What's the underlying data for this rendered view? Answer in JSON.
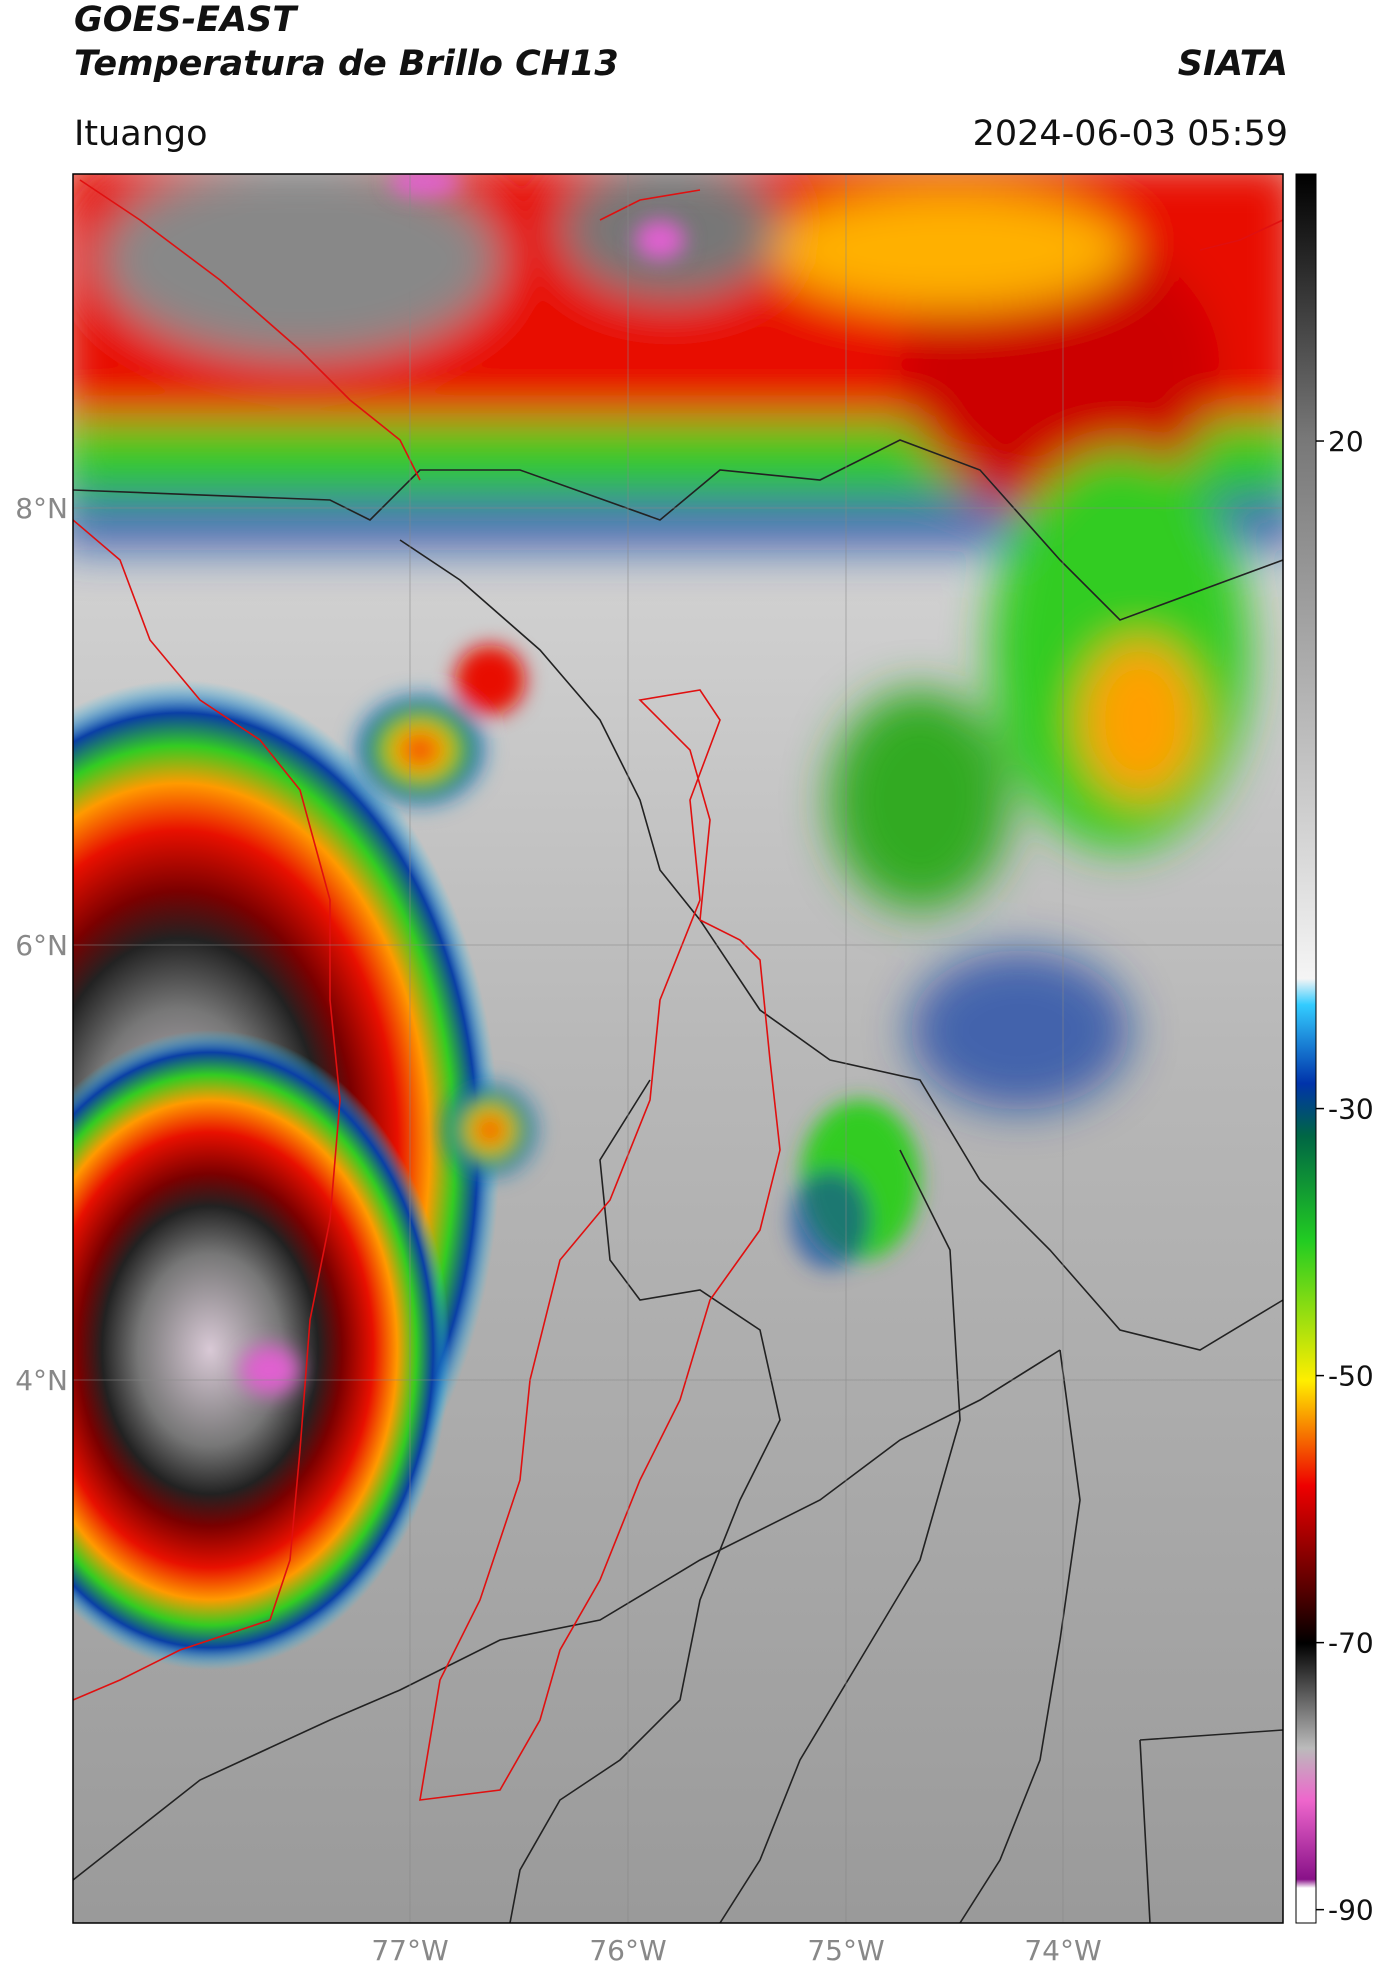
{
  "header": {
    "title": "GOES-EAST",
    "subtitle": "Temperatura de Brillo CH13",
    "source": "SIATA",
    "location": "Ituango",
    "datetime": "2024-06-03 05:59"
  },
  "map": {
    "lat_ticks": [
      "8°N",
      "6°N",
      "4°N"
    ],
    "lon_ticks": [
      "77°W",
      "76°W",
      "75°W",
      "74°W"
    ]
  },
  "colorbar": {
    "range": [
      -91,
      40
    ],
    "ticks": [
      20,
      -30,
      -50,
      -70,
      -90
    ]
  }
}
